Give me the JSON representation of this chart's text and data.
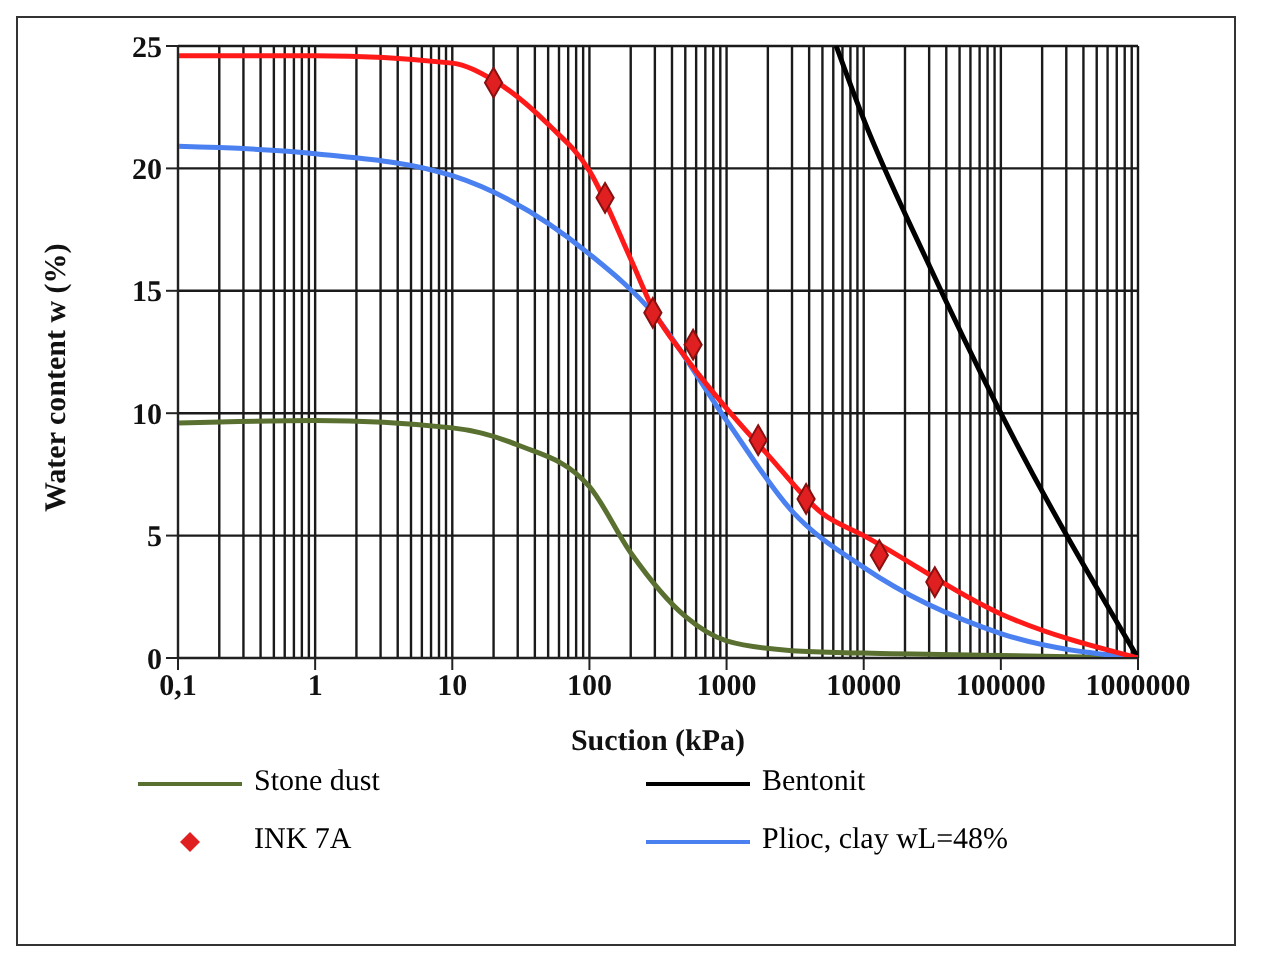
{
  "chart_data": {
    "type": "line",
    "xlabel": "Suction (kPa)",
    "ylabel": "Water content w (%)",
    "log": "x",
    "grid": true,
    "legend": "bottom",
    "xlim": [
      0.1,
      1000000
    ],
    "xticks": [
      {
        "value": 0.1,
        "label": "0,1"
      },
      1,
      10,
      100,
      1000,
      10000,
      100000,
      1000000
    ],
    "ylim": [
      0,
      25
    ],
    "yticks": [
      0,
      5,
      10,
      15,
      20,
      25
    ],
    "series": [
      {
        "name": "Stone dust",
        "color": "#5a7030",
        "marker": "none",
        "x": [
          0.1,
          1,
          10,
          30,
          100,
          200,
          500,
          1000,
          3000,
          10000,
          100000,
          1000000
        ],
        "values": [
          9.6,
          9.7,
          9.4,
          8.7,
          7.0,
          4.3,
          1.7,
          0.7,
          0.3,
          0.2,
          0.1,
          0
        ]
      },
      {
        "name": "Bentonit",
        "color": "#000000",
        "marker": "none",
        "x": [
          6300,
          10000,
          28000,
          100000,
          1000000
        ],
        "values": [
          25,
          22,
          16.4,
          10,
          0
        ]
      },
      {
        "name": "INK 7A",
        "type": "scatter",
        "color": "#e02020",
        "marker": "diamond",
        "x": [
          20,
          130,
          290,
          570,
          1700,
          3800,
          13000,
          33000
        ],
        "values": [
          23.5,
          18.8,
          14.1,
          12.8,
          8.9,
          6.5,
          4.2,
          3.1
        ]
      },
      {
        "name": "Plioc, clay wL=48%",
        "color": "#4a80f0",
        "marker": "none",
        "x": [
          0.1,
          1,
          10,
          100,
          300,
          1000,
          3000,
          10000,
          100000,
          1000000
        ],
        "values": [
          20.9,
          20.6,
          19.7,
          16.5,
          14.0,
          9.7,
          6.0,
          3.7,
          1.0,
          0
        ]
      },
      {
        "color": "#ff1a1a",
        "marker": "none",
        "x": [
          0.1,
          1,
          10,
          20,
          50,
          100,
          200,
          300,
          500,
          1000,
          2000,
          5000,
          10000,
          100000,
          1000000
        ],
        "values": [
          24.6,
          24.6,
          24.3,
          23.6,
          21.8,
          19.9,
          16.3,
          14.1,
          12.3,
          10.2,
          8.3,
          5.9,
          5.0,
          1.8,
          0
        ]
      }
    ]
  }
}
